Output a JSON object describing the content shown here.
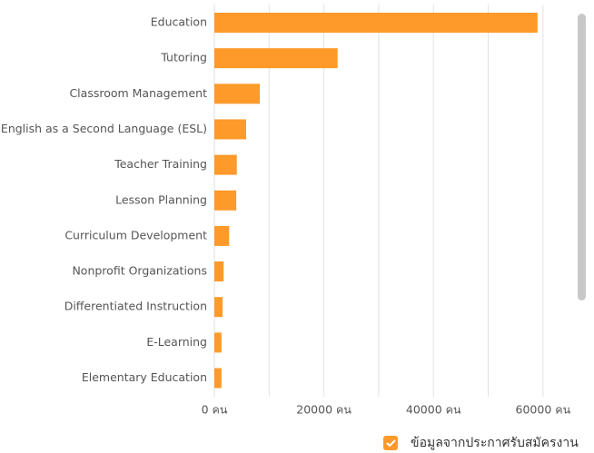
{
  "chart_data": {
    "type": "bar",
    "orientation": "horizontal",
    "categories": [
      "Education",
      "Tutoring",
      "Classroom Management",
      "English as a Second Language (ESL)",
      "Teacher Training",
      "Lesson Planning",
      "Curriculum Development",
      "Nonprofit Organizations",
      "Differentiated Instruction",
      "E-Learning",
      "Elementary Education"
    ],
    "series": [
      {
        "name": "ข้อมูลจากประกาศรับสมัครงาน",
        "color": "#fd9a2a",
        "values": [
          59000,
          22500,
          8300,
          5800,
          4100,
          4000,
          2700,
          1700,
          1500,
          1300,
          1300
        ]
      }
    ],
    "xlim": [
      0,
      65000
    ],
    "xticks": [
      {
        "value": 0,
        "label": "0 คน"
      },
      {
        "value": 20000,
        "label": "20000 คน"
      },
      {
        "value": 40000,
        "label": "40000 คน"
      },
      {
        "value": 60000,
        "label": "60000 คน"
      }
    ],
    "xticks_minor": [
      10000,
      30000,
      50000
    ],
    "grid": true,
    "legend": "bottom"
  }
}
